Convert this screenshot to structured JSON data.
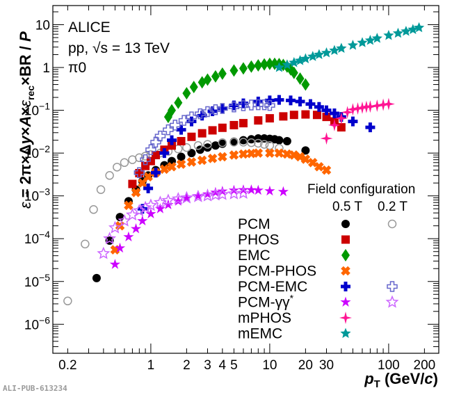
{
  "chart_data": {
    "type": "scatter",
    "title": "",
    "annotations": [
      "ALICE",
      "pp, √s = 13 TeV",
      "π0"
    ],
    "xlabel": "pT (GeV/c)",
    "ylabel": "ε = 2π×Δy×A×ε_rec×BR / P",
    "xscale": "log",
    "yscale": "log",
    "xlim": [
      0.15,
      264
    ],
    "ylim": [
      2.1e-07,
      28
    ],
    "grid": false,
    "x_ticks": [
      0.2,
      1,
      2,
      3,
      4,
      5,
      10,
      20,
      30,
      100,
      200
    ],
    "x_tick_labels": [
      "0.2",
      "1",
      "2",
      "3",
      "4",
      "5",
      "10",
      "20",
      "30",
      "100",
      "200"
    ],
    "y_ticks": [
      1e-06,
      1e-05,
      0.0001,
      0.001,
      0.01,
      0.1,
      1,
      10
    ],
    "y_tick_labels": [
      "10^-6",
      "10^-5",
      "10^-4",
      "10^-3",
      "10^-2",
      "10^-1",
      "1",
      "10"
    ],
    "legend": {
      "placement": "bottom-right",
      "header": "Field configuration",
      "columns": [
        "0.5 T",
        "0.2 T"
      ],
      "rows": [
        {
          "label": "PCM",
          "b05": "PCM 0.5T",
          "b02": "PCM 0.2T"
        },
        {
          "label": "PHOS",
          "b05": "PHOS 0.5T",
          "b02": null
        },
        {
          "label": "EMC",
          "b05": "EMC 0.5T",
          "b02": null
        },
        {
          "label": "PCM-PHOS",
          "b05": "PCM-PHOS 0.5T",
          "b02": null
        },
        {
          "label": "PCM-EMC",
          "b05": "PCM-EMC 0.5T",
          "b02": "PCM-EMC 0.2T"
        },
        {
          "label": "PCM-γγ*",
          "b05": "PCM-Dalitz 0.5T",
          "b02": "PCM-Dalitz 0.2T"
        },
        {
          "label": "mPHOS",
          "b05": "mPHOS 0.5T",
          "b02": null
        },
        {
          "label": "mEMC",
          "b05": "mEMC 0.5T",
          "b02": null
        }
      ]
    },
    "series": [
      {
        "name": "PCM 0.5T",
        "marker": "circle",
        "color": "#000000",
        "x": [
          0.35,
          0.45,
          0.55,
          0.65,
          0.75,
          0.85,
          0.95,
          1.1,
          1.3,
          1.5,
          1.8,
          2.2,
          2.6,
          3.0,
          3.5,
          4.0,
          5.0,
          6.0,
          7.0,
          8.0,
          9.0,
          10.0,
          11.0,
          12.0,
          14.0,
          20.0
        ],
        "y": [
          1.2e-05,
          9e-05,
          0.00032,
          0.00075,
          0.0014,
          0.0022,
          0.003,
          0.004,
          0.0052,
          0.0065,
          0.0082,
          0.01,
          0.012,
          0.0135,
          0.015,
          0.0165,
          0.0185,
          0.02,
          0.021,
          0.022,
          0.022,
          0.0215,
          0.021,
          0.02,
          0.019,
          0.0115
        ]
      },
      {
        "name": "PCM 0.2T",
        "marker": "open-circle",
        "color": "#999999",
        "x": [
          0.2,
          0.28,
          0.33,
          0.38,
          0.45,
          0.52,
          0.6,
          0.7,
          0.8,
          0.9,
          1.0,
          1.2,
          1.4,
          1.7,
          2.0,
          2.5,
          3.0,
          4.0,
          5.0,
          6.0,
          7.0,
          8.0,
          9.0,
          10.0,
          12.0
        ],
        "y": [
          3.5e-06,
          7.5e-05,
          0.00048,
          0.0014,
          0.003,
          0.0047,
          0.006,
          0.007,
          0.0078,
          0.0085,
          0.0092,
          0.01,
          0.011,
          0.0125,
          0.0135,
          0.015,
          0.016,
          0.0175,
          0.018,
          0.018,
          0.0175,
          0.017,
          0.016,
          0.015,
          0.013
        ]
      },
      {
        "name": "PHOS 0.5T",
        "marker": "square",
        "color": "#cc0000",
        "x": [
          0.7,
          0.8,
          0.9,
          1.0,
          1.1,
          1.3,
          1.5,
          1.8,
          2.2,
          2.7,
          3.3,
          4.0,
          5.0,
          6.0,
          8.0,
          10.0,
          13.0,
          16.0,
          20.0,
          25.0,
          30.0,
          35.0,
          40.0
        ],
        "y": [
          0.0019,
          0.0034,
          0.005,
          0.0065,
          0.009,
          0.012,
          0.015,
          0.019,
          0.024,
          0.029,
          0.034,
          0.039,
          0.045,
          0.05,
          0.058,
          0.065,
          0.072,
          0.078,
          0.08,
          0.078,
          0.07,
          0.055,
          0.04
        ]
      },
      {
        "name": "EMC 0.5T",
        "marker": "diamond",
        "color": "#009900",
        "x": [
          1.4,
          1.5,
          1.7,
          2.0,
          2.3,
          2.7,
          3.0,
          3.5,
          4.0,
          5.0,
          6.0,
          7.0,
          8.0,
          9.0,
          10.0,
          11.0,
          12.0,
          13.0,
          14.0,
          15.0,
          16.0,
          18.0,
          20.0
        ],
        "y": [
          0.07,
          0.1,
          0.15,
          0.25,
          0.35,
          0.45,
          0.52,
          0.62,
          0.72,
          0.85,
          0.95,
          1.05,
          1.12,
          1.18,
          1.22,
          1.22,
          1.2,
          1.15,
          1.05,
          0.9,
          0.75,
          0.55,
          0.4
        ]
      },
      {
        "name": "PCM-PHOS 0.5T",
        "marker": "x-cross",
        "color": "#ff6600",
        "x": [
          0.5,
          0.55,
          0.65,
          0.75,
          0.85,
          0.95,
          1.1,
          1.3,
          1.5,
          1.8,
          2.2,
          2.7,
          3.3,
          4.0,
          5.0,
          6.0,
          7.0,
          8.0,
          10.0,
          12.0,
          14.0,
          16.0,
          18.0,
          20.0,
          23.0,
          26.0,
          30.0
        ],
        "y": [
          5.5e-05,
          0.0002,
          0.0006,
          0.0012,
          0.002,
          0.0028,
          0.0035,
          0.0042,
          0.0048,
          0.0055,
          0.0062,
          0.0068,
          0.0075,
          0.0082,
          0.009,
          0.0095,
          0.0098,
          0.01,
          0.01,
          0.01,
          0.0095,
          0.009,
          0.0082,
          0.0072,
          0.006,
          0.0048,
          0.004
        ]
      },
      {
        "name": "PCM-EMC 0.5T",
        "marker": "cross",
        "color": "#0000cc",
        "x": [
          0.85,
          0.95,
          1.1,
          1.3,
          1.5,
          1.8,
          2.2,
          2.7,
          3.3,
          4.0,
          5.0,
          6.0,
          8.0,
          10.0,
          12.0,
          15.0,
          18.0,
          22.0,
          26.0,
          30.0,
          35.0,
          40.0,
          50.0,
          70.0
        ],
        "y": [
          0.0005,
          0.0015,
          0.0035,
          0.01,
          0.02,
          0.035,
          0.055,
          0.075,
          0.095,
          0.11,
          0.13,
          0.145,
          0.16,
          0.17,
          0.175,
          0.17,
          0.16,
          0.14,
          0.12,
          0.1,
          0.085,
          0.07,
          0.055,
          0.04
        ]
      },
      {
        "name": "PCM-EMC 0.2T",
        "marker": "open-cross",
        "color": "#6666cc",
        "x": [
          0.8,
          0.9,
          1.0,
          1.1,
          1.2,
          1.4,
          1.6,
          1.9,
          2.2,
          2.6,
          3.0,
          3.5,
          4.0,
          5.0,
          6.0,
          7.0,
          8.0,
          9.0,
          10.0
        ],
        "y": [
          0.0035,
          0.007,
          0.012,
          0.018,
          0.025,
          0.035,
          0.045,
          0.058,
          0.07,
          0.083,
          0.093,
          0.103,
          0.11,
          0.12,
          0.128,
          0.133,
          0.135,
          0.135,
          0.13
        ]
      },
      {
        "name": "PCM-Dalitz 0.5T",
        "marker": "star",
        "color": "#cc00ff",
        "x": [
          0.5,
          0.55,
          0.65,
          0.75,
          0.85,
          1.0,
          1.2,
          1.4,
          1.7,
          2.0,
          2.5,
          3.0,
          3.5,
          4.0,
          5.0,
          6.0,
          7.0,
          8.0,
          10.0,
          13.0
        ],
        "y": [
          2.5e-05,
          6e-05,
          0.00011,
          0.00017,
          0.00026,
          0.00038,
          0.0005,
          0.00062,
          0.00075,
          0.00087,
          0.001,
          0.0011,
          0.0012,
          0.00128,
          0.00135,
          0.00138,
          0.00138,
          0.00135,
          0.0013,
          0.00125
        ]
      },
      {
        "name": "PCM-Dalitz 0.2T",
        "marker": "open-star",
        "color": "#cc66ff",
        "x": [
          0.4,
          0.45,
          0.5,
          0.6,
          0.7,
          0.8,
          0.9,
          1.0,
          1.2,
          1.4,
          1.7,
          2.0,
          2.5,
          3.0,
          3.5,
          4.0,
          5.0,
          6.0
        ],
        "y": [
          4.5e-05,
          0.0001,
          0.00018,
          0.00026,
          0.00036,
          0.00045,
          0.00053,
          0.0006,
          0.0007,
          0.00078,
          0.00085,
          0.0009,
          0.00096,
          0.001,
          0.00105,
          0.00108,
          0.00112,
          0.00115
        ]
      },
      {
        "name": "mPHOS 0.5T",
        "marker": "four-star",
        "color": "#ff1493",
        "x": [
          30.0,
          35.0,
          40.0,
          45.0,
          50.0,
          55.0,
          60.0,
          65.0,
          70.0,
          80.0,
          90.0,
          100.0
        ],
        "y": [
          0.022,
          0.045,
          0.065,
          0.09,
          0.105,
          0.11,
          0.115,
          0.12,
          0.122,
          0.128,
          0.135,
          0.14
        ]
      },
      {
        "name": "mEMC 0.5T",
        "marker": "five-star",
        "color": "#009999",
        "x": [
          12.0,
          14.0,
          16.0,
          18.0,
          20.0,
          23.0,
          26.0,
          30.0,
          35.0,
          40.0,
          50.0,
          60.0,
          70.0,
          80.0,
          100.0,
          120.0,
          140.0,
          160.0,
          180.0
        ],
        "y": [
          1.0,
          1.15,
          1.3,
          1.45,
          1.6,
          1.8,
          2.0,
          2.2,
          2.5,
          2.8,
          3.3,
          3.8,
          4.3,
          4.8,
          5.6,
          6.3,
          7.0,
          7.7,
          8.5
        ]
      }
    ]
  },
  "footer": {
    "pub_id": "ALI-PUB-613234"
  }
}
